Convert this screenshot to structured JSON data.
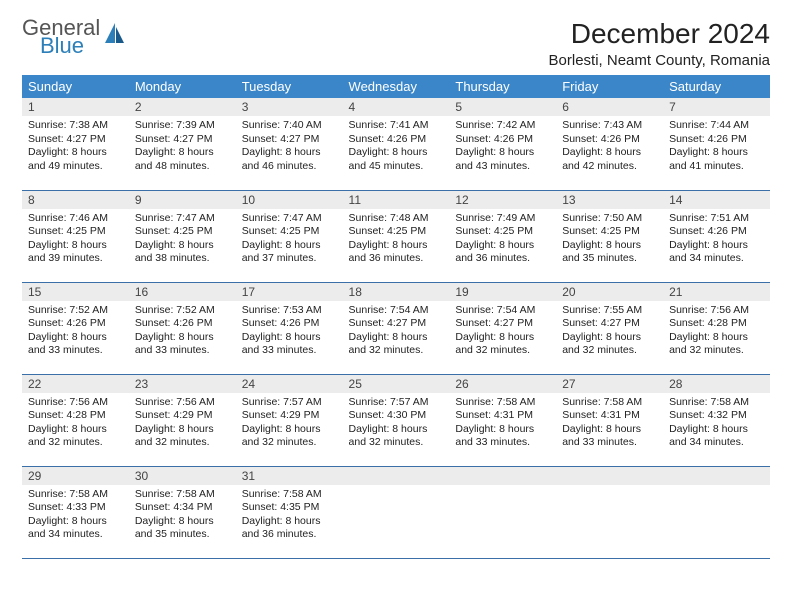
{
  "logo": {
    "top": "General",
    "bottom": "Blue"
  },
  "title": "December 2024",
  "location": "Borlesti, Neamt County, Romania",
  "colors": {
    "header_bg": "#3a86c8",
    "header_text": "#ffffff",
    "daynum_bg": "#ececec",
    "row_border": "#3a6fa8",
    "logo_gray": "#555555",
    "logo_blue": "#2c7fb8"
  },
  "weekdays": [
    "Sunday",
    "Monday",
    "Tuesday",
    "Wednesday",
    "Thursday",
    "Friday",
    "Saturday"
  ],
  "weeks": [
    [
      {
        "n": "1",
        "sr": "7:38 AM",
        "ss": "4:27 PM",
        "dl": "8 hours and 49 minutes."
      },
      {
        "n": "2",
        "sr": "7:39 AM",
        "ss": "4:27 PM",
        "dl": "8 hours and 48 minutes."
      },
      {
        "n": "3",
        "sr": "7:40 AM",
        "ss": "4:27 PM",
        "dl": "8 hours and 46 minutes."
      },
      {
        "n": "4",
        "sr": "7:41 AM",
        "ss": "4:26 PM",
        "dl": "8 hours and 45 minutes."
      },
      {
        "n": "5",
        "sr": "7:42 AM",
        "ss": "4:26 PM",
        "dl": "8 hours and 43 minutes."
      },
      {
        "n": "6",
        "sr": "7:43 AM",
        "ss": "4:26 PM",
        "dl": "8 hours and 42 minutes."
      },
      {
        "n": "7",
        "sr": "7:44 AM",
        "ss": "4:26 PM",
        "dl": "8 hours and 41 minutes."
      }
    ],
    [
      {
        "n": "8",
        "sr": "7:46 AM",
        "ss": "4:25 PM",
        "dl": "8 hours and 39 minutes."
      },
      {
        "n": "9",
        "sr": "7:47 AM",
        "ss": "4:25 PM",
        "dl": "8 hours and 38 minutes."
      },
      {
        "n": "10",
        "sr": "7:47 AM",
        "ss": "4:25 PM",
        "dl": "8 hours and 37 minutes."
      },
      {
        "n": "11",
        "sr": "7:48 AM",
        "ss": "4:25 PM",
        "dl": "8 hours and 36 minutes."
      },
      {
        "n": "12",
        "sr": "7:49 AM",
        "ss": "4:25 PM",
        "dl": "8 hours and 36 minutes."
      },
      {
        "n": "13",
        "sr": "7:50 AM",
        "ss": "4:25 PM",
        "dl": "8 hours and 35 minutes."
      },
      {
        "n": "14",
        "sr": "7:51 AM",
        "ss": "4:26 PM",
        "dl": "8 hours and 34 minutes."
      }
    ],
    [
      {
        "n": "15",
        "sr": "7:52 AM",
        "ss": "4:26 PM",
        "dl": "8 hours and 33 minutes."
      },
      {
        "n": "16",
        "sr": "7:52 AM",
        "ss": "4:26 PM",
        "dl": "8 hours and 33 minutes."
      },
      {
        "n": "17",
        "sr": "7:53 AM",
        "ss": "4:26 PM",
        "dl": "8 hours and 33 minutes."
      },
      {
        "n": "18",
        "sr": "7:54 AM",
        "ss": "4:27 PM",
        "dl": "8 hours and 32 minutes."
      },
      {
        "n": "19",
        "sr": "7:54 AM",
        "ss": "4:27 PM",
        "dl": "8 hours and 32 minutes."
      },
      {
        "n": "20",
        "sr": "7:55 AM",
        "ss": "4:27 PM",
        "dl": "8 hours and 32 minutes."
      },
      {
        "n": "21",
        "sr": "7:56 AM",
        "ss": "4:28 PM",
        "dl": "8 hours and 32 minutes."
      }
    ],
    [
      {
        "n": "22",
        "sr": "7:56 AM",
        "ss": "4:28 PM",
        "dl": "8 hours and 32 minutes."
      },
      {
        "n": "23",
        "sr": "7:56 AM",
        "ss": "4:29 PM",
        "dl": "8 hours and 32 minutes."
      },
      {
        "n": "24",
        "sr": "7:57 AM",
        "ss": "4:29 PM",
        "dl": "8 hours and 32 minutes."
      },
      {
        "n": "25",
        "sr": "7:57 AM",
        "ss": "4:30 PM",
        "dl": "8 hours and 32 minutes."
      },
      {
        "n": "26",
        "sr": "7:58 AM",
        "ss": "4:31 PM",
        "dl": "8 hours and 33 minutes."
      },
      {
        "n": "27",
        "sr": "7:58 AM",
        "ss": "4:31 PM",
        "dl": "8 hours and 33 minutes."
      },
      {
        "n": "28",
        "sr": "7:58 AM",
        "ss": "4:32 PM",
        "dl": "8 hours and 34 minutes."
      }
    ],
    [
      {
        "n": "29",
        "sr": "7:58 AM",
        "ss": "4:33 PM",
        "dl": "8 hours and 34 minutes."
      },
      {
        "n": "30",
        "sr": "7:58 AM",
        "ss": "4:34 PM",
        "dl": "8 hours and 35 minutes."
      },
      {
        "n": "31",
        "sr": "7:58 AM",
        "ss": "4:35 PM",
        "dl": "8 hours and 36 minutes."
      },
      null,
      null,
      null,
      null
    ]
  ],
  "labels": {
    "sunrise": "Sunrise:",
    "sunset": "Sunset:",
    "daylight": "Daylight:"
  }
}
